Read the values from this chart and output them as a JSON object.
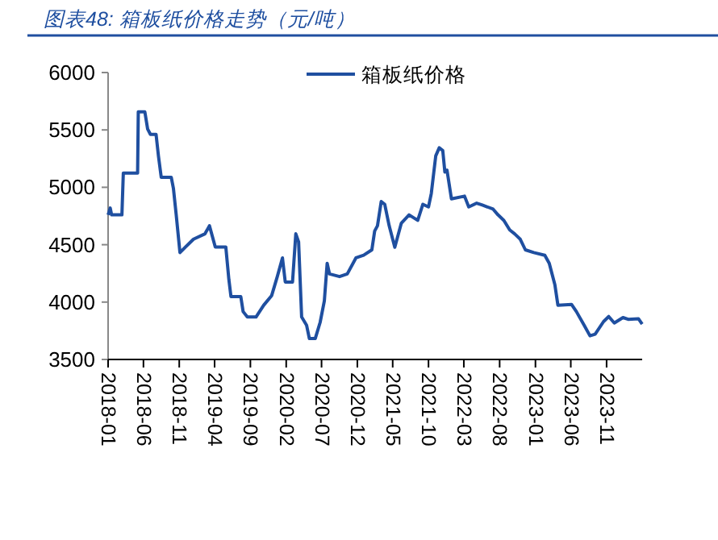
{
  "chart_data": {
    "type": "line",
    "title": "图表48:  箱板纸价格走势（元/吨）",
    "x": [
      "2018-01-01",
      "2018-01-10",
      "2018-01-16",
      "2018-03-01",
      "2018-03-07",
      "2018-05-07",
      "2018-05-10",
      "2018-06-07",
      "2018-06-19",
      "2018-07-01",
      "2018-07-25",
      "2018-08-04",
      "2018-08-16",
      "2018-09-28",
      "2018-10-07",
      "2018-10-19",
      "2018-11-04",
      "2018-11-28",
      "2019-01-01",
      "2019-02-19",
      "2019-03-10",
      "2019-04-04",
      "2019-05-19",
      "2019-06-01",
      "2019-06-10",
      "2019-07-22",
      "2019-08-01",
      "2019-08-19",
      "2019-09-25",
      "2019-10-28",
      "2019-12-01",
      "2019-12-25",
      "2020-01-16",
      "2020-01-28",
      "2020-02-28",
      "2020-03-13",
      "2020-03-25",
      "2020-04-07",
      "2020-04-28",
      "2020-05-10",
      "2020-06-04",
      "2020-06-25",
      "2020-07-13",
      "2020-07-25",
      "2020-08-04",
      "2020-09-16",
      "2020-10-19",
      "2020-11-25",
      "2020-12-28",
      "2021-02-01",
      "2021-02-13",
      "2021-02-25",
      "2021-03-13",
      "2021-03-28",
      "2021-04-16",
      "2021-05-10",
      "2021-06-07",
      "2021-07-10",
      "2021-08-16",
      "2021-09-07",
      "2021-10-01",
      "2021-10-13",
      "2021-11-01",
      "2021-11-16",
      "2021-12-01",
      "2021-12-10",
      "2021-12-19",
      "2022-01-07",
      "2022-03-04",
      "2022-03-22",
      "2022-04-25",
      "2022-05-19",
      "2022-06-10",
      "2022-07-04",
      "2022-07-25",
      "2022-08-19",
      "2022-09-13",
      "2022-10-04",
      "2022-10-28",
      "2022-11-19",
      "2022-12-25",
      "2023-02-10",
      "2023-03-01",
      "2023-03-25",
      "2023-04-07",
      "2023-06-04",
      "2023-06-25",
      "2023-07-28",
      "2023-08-22",
      "2023-09-13",
      "2023-10-19",
      "2023-11-10",
      "2023-12-04",
      "2024-01-10",
      "2024-02-01",
      "2024-03-16",
      "2024-04-01"
    ],
    "series": [
      {
        "name": "箱板纸价格",
        "color": "#1f4fa0",
        "values": [
          4760,
          4820,
          4760,
          4760,
          5124,
          5124,
          5658,
          5658,
          5508,
          5461,
          5461,
          5274,
          5087,
          5087,
          4992,
          4760,
          4431,
          4480,
          4548,
          4595,
          4665,
          4480,
          4480,
          4198,
          4048,
          4048,
          3917,
          3870,
          3870,
          3973,
          4057,
          4222,
          4385,
          4175,
          4175,
          4595,
          4525,
          3870,
          3799,
          3682,
          3682,
          3823,
          4010,
          4338,
          4245,
          4222,
          4245,
          4385,
          4408,
          4455,
          4619,
          4665,
          4876,
          4852,
          4665,
          4478,
          4688,
          4760,
          4712,
          4852,
          4829,
          4946,
          5274,
          5344,
          5320,
          5133,
          5150,
          4899,
          4923,
          4829,
          4862,
          4845,
          4829,
          4810,
          4760,
          4712,
          4629,
          4595,
          4548,
          4455,
          4431,
          4408,
          4338,
          4151,
          3973,
          3980,
          3917,
          3799,
          3706,
          3720,
          3830,
          3874,
          3818,
          3865,
          3850,
          3855,
          3808
        ]
      }
    ],
    "xlim": [
      "2018-01",
      "2024-04"
    ],
    "xticks": [
      "2018-01",
      "2018-06",
      "2018-11",
      "2019-04",
      "2019-09",
      "2020-02",
      "2020-07",
      "2020-12",
      "2021-05",
      "2021-10",
      "2022-03",
      "2022-08",
      "2023-01",
      "2023-06",
      "2023-11"
    ],
    "ylim": [
      3500,
      6000
    ],
    "yticks": [
      3500,
      4000,
      4500,
      5000,
      5500,
      6000
    ],
    "legend": "top right",
    "grid": false
  }
}
